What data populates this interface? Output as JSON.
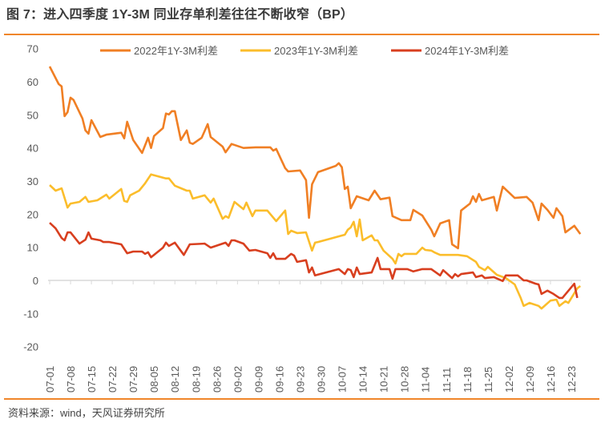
{
  "header": {
    "title": "图 7：进入四季度 1Y-3M 同业存单利差往往不断收窄（BP）"
  },
  "footer": {
    "source": "资料来源：wind，天风证券研究所"
  },
  "colors": {
    "accent": "#f0862a",
    "s2022": "#f07f24",
    "s2023": "#fbbd2b",
    "s2024": "#d83f1f",
    "axis": "#d9d9d9"
  },
  "chart_data": {
    "type": "line",
    "title": "",
    "xlabel": "",
    "ylabel": "",
    "ylim": [
      -20,
      70
    ],
    "yticks": [
      "70",
      "60",
      "50",
      "40",
      "30",
      "20",
      "10",
      "0",
      "-10",
      "-20"
    ],
    "xticks": [
      "07-01",
      "07-08",
      "07-15",
      "07-22",
      "07-29",
      "08-05",
      "08-12",
      "08-19",
      "08-26",
      "09-02",
      "09-09",
      "09-16",
      "09-23",
      "09-30",
      "10-07",
      "10-14",
      "10-21",
      "10-28",
      "11-04",
      "11-11",
      "11-18",
      "11-25",
      "12-02",
      "12-09",
      "12-16",
      "12-23"
    ],
    "grid": false,
    "legend": "top",
    "series": [
      {
        "name": "2022年1Y-3M利差",
        "color": "#f07f24",
        "x": [
          "07-01",
          "07-04",
          "07-05",
          "07-06",
          "07-07",
          "07-08",
          "07-09",
          "07-12",
          "07-13",
          "07-14",
          "07-15",
          "07-18",
          "07-20",
          "07-25",
          "07-26",
          "07-27",
          "07-29",
          "08-01",
          "08-03",
          "08-04",
          "08-05",
          "08-08",
          "08-09",
          "08-10",
          "08-11",
          "08-12",
          "08-14",
          "08-16",
          "08-17",
          "08-18",
          "08-21",
          "08-23",
          "08-24",
          "08-28",
          "08-29",
          "08-31",
          "09-04",
          "09-08",
          "09-13",
          "09-14",
          "09-15",
          "09-18",
          "09-19",
          "09-23",
          "09-25",
          "09-26",
          "09-27",
          "09-29",
          "10-05",
          "10-06",
          "10-07",
          "10-08",
          "10-09",
          "10-10",
          "10-12",
          "10-16",
          "10-18",
          "10-20",
          "10-23",
          "10-24",
          "10-27",
          "10-30",
          "10-31",
          "11-03",
          "11-06",
          "11-07",
          "11-09",
          "11-12",
          "11-13",
          "11-15",
          "11-16",
          "11-19",
          "11-20",
          "11-21",
          "11-22",
          "11-23",
          "11-27",
          "11-28",
          "11-30",
          "12-04",
          "12-08",
          "12-10",
          "12-12",
          "12-13",
          "12-15",
          "12-17",
          "12-18",
          "12-20",
          "12-21",
          "12-24",
          "12-26"
        ],
        "y": [
          64.6,
          59.3,
          58.6,
          49.6,
          50.8,
          55.2,
          54.5,
          48.9,
          45.3,
          44.3,
          48.4,
          43.3,
          44,
          44.6,
          42.9,
          47.9,
          42.4,
          38.5,
          43.1,
          40,
          43.6,
          46,
          50.4,
          50.1,
          51.1,
          51.1,
          42.4,
          45.3,
          41.6,
          41.2,
          43.1,
          47.2,
          43.3,
          40.4,
          38.7,
          41.2,
          40,
          40.2,
          40.2,
          39.2,
          39.7,
          33.9,
          32.9,
          33.2,
          30.3,
          18.9,
          29,
          32.7,
          34.6,
          35.4,
          34.2,
          27.6,
          28.3,
          21.8,
          25.4,
          24.2,
          27.1,
          24.5,
          25,
          19.4,
          18.2,
          18.2,
          21.3,
          19.6,
          15.3,
          13.3,
          17.2,
          18.2,
          10.9,
          9.7,
          21.1,
          23.2,
          25.4,
          23.7,
          26.1,
          24.2,
          25.2,
          21.1,
          28.3,
          24.9,
          25.2,
          23.5,
          18.2,
          23.2,
          21.3,
          18.9,
          21.8,
          19.4,
          14.5,
          16.5,
          14
        ]
      },
      {
        "name": "2023年1Y-3M利差",
        "color": "#fbbd2b",
        "x": [
          "07-01",
          "07-03",
          "07-05",
          "07-07",
          "07-08",
          "07-11",
          "07-13",
          "07-14",
          "07-17",
          "07-20",
          "07-21",
          "07-25",
          "07-26",
          "07-27",
          "07-28",
          "07-31",
          "08-02",
          "08-04",
          "08-09",
          "08-10",
          "08-12",
          "08-16",
          "08-17",
          "08-18",
          "08-22",
          "08-24",
          "08-25",
          "08-28",
          "08-29",
          "08-30",
          "09-01",
          "09-04",
          "09-05",
          "09-07",
          "09-08",
          "09-12",
          "09-15",
          "09-18",
          "09-19",
          "09-20",
          "09-22",
          "09-25",
          "09-27",
          "09-28",
          "09-29",
          "10-08",
          "10-09",
          "10-10",
          "10-11",
          "10-12",
          "10-13",
          "10-14",
          "10-17",
          "10-18",
          "10-19",
          "10-21",
          "10-24",
          "10-25",
          "10-26",
          "10-27",
          "10-28",
          "11-01",
          "11-03",
          "11-04",
          "11-06",
          "11-07",
          "11-09",
          "11-14",
          "11-15",
          "11-18",
          "11-21",
          "11-22",
          "11-24",
          "11-25",
          "11-28",
          "12-01",
          "12-04",
          "12-06",
          "12-07",
          "12-09",
          "12-12",
          "12-13",
          "12-16",
          "12-18",
          "12-19",
          "12-21",
          "12-22",
          "12-25",
          "12-26"
        ],
        "y": [
          28.8,
          27.1,
          27.8,
          22,
          23.2,
          23.7,
          25.2,
          23.7,
          24.2,
          25.9,
          24.7,
          27.6,
          24,
          23.7,
          25.7,
          27.1,
          29.3,
          32,
          30.8,
          30.8,
          28.6,
          27.1,
          27.1,
          24.7,
          25.7,
          23.5,
          24.7,
          18.6,
          19.4,
          18.9,
          23.7,
          21.5,
          23.5,
          19.4,
          21.1,
          21.1,
          17.9,
          21.1,
          14,
          15,
          14.3,
          14.5,
          9,
          11.4,
          11.6,
          13.8,
          15.3,
          16,
          17.7,
          13.3,
          18.4,
          12.1,
          13.6,
          12.1,
          12.1,
          9,
          6.5,
          5.1,
          8,
          7.3,
          8,
          8,
          9.9,
          9.2,
          9,
          8.5,
          7.7,
          7.7,
          7.7,
          7.3,
          5.6,
          4.1,
          3.1,
          4.1,
          1.7,
          0.7,
          -1.2,
          -5.3,
          -7.7,
          -6.8,
          -7.7,
          -8.5,
          -6.1,
          -5.8,
          -7.7,
          -6.3,
          -6.8,
          -2.4,
          -1.7
        ]
      },
      {
        "name": "2024年1Y-3M利差",
        "color": "#d83f1f",
        "x": [
          "07-01",
          "07-03",
          "07-05",
          "07-06",
          "07-07",
          "07-08",
          "07-11",
          "07-13",
          "07-14",
          "07-15",
          "07-18",
          "07-19",
          "07-21",
          "07-25",
          "07-27",
          "07-29",
          "08-01",
          "08-02",
          "08-03",
          "08-04",
          "08-08",
          "08-09",
          "08-10",
          "08-12",
          "08-15",
          "08-17",
          "08-22",
          "08-24",
          "08-29",
          "08-30",
          "08-31",
          "09-01",
          "09-04",
          "09-06",
          "09-08",
          "09-12",
          "09-13",
          "09-14",
          "09-15",
          "09-18",
          "09-20",
          "09-21",
          "09-22",
          "09-25",
          "09-26",
          "09-27",
          "09-28",
          "10-06",
          "10-08",
          "10-09",
          "10-10",
          "10-11",
          "10-12",
          "10-13",
          "10-17",
          "10-19",
          "10-20",
          "10-23",
          "10-24",
          "10-25",
          "10-29",
          "10-31",
          "11-03",
          "11-06",
          "11-09",
          "11-10",
          "11-13",
          "11-14",
          "11-15",
          "11-16",
          "11-20",
          "11-21",
          "11-23",
          "11-24",
          "11-27",
          "11-30",
          "12-01",
          "12-05",
          "12-07",
          "12-08",
          "12-11",
          "12-12",
          "12-13",
          "12-15",
          "12-17",
          "12-19",
          "12-20",
          "12-24",
          "12-25"
        ],
        "y": [
          17.4,
          15.7,
          12.8,
          12.1,
          14.5,
          14.5,
          11.1,
          12.3,
          14.5,
          12.6,
          12.1,
          11.6,
          11.6,
          10.9,
          8.2,
          8.7,
          8.7,
          8,
          8.5,
          7,
          9.9,
          11.4,
          10.4,
          11.4,
          7.7,
          10.9,
          11.1,
          9.9,
          11.4,
          10.4,
          12.1,
          12.1,
          11.1,
          9,
          9.2,
          8.2,
          6.8,
          8.2,
          6.5,
          6.5,
          8,
          7.5,
          5.6,
          6.1,
          2.4,
          3.9,
          1.5,
          3.4,
          1.9,
          3.4,
          3.1,
          1,
          3.9,
          1.9,
          2.4,
          6.8,
          3.4,
          3.4,
          0.5,
          3.4,
          3.4,
          2.7,
          3.4,
          3.4,
          1.5,
          3.1,
          0.7,
          1.9,
          1.2,
          1.9,
          2.4,
          1,
          1.5,
          0.7,
          1,
          -0.2,
          1.5,
          1.5,
          0,
          0,
          -1,
          -1.2,
          -4.1,
          -3.1,
          -4.1,
          -5.3,
          -5.3,
          -1,
          -5.3
        ]
      }
    ]
  }
}
